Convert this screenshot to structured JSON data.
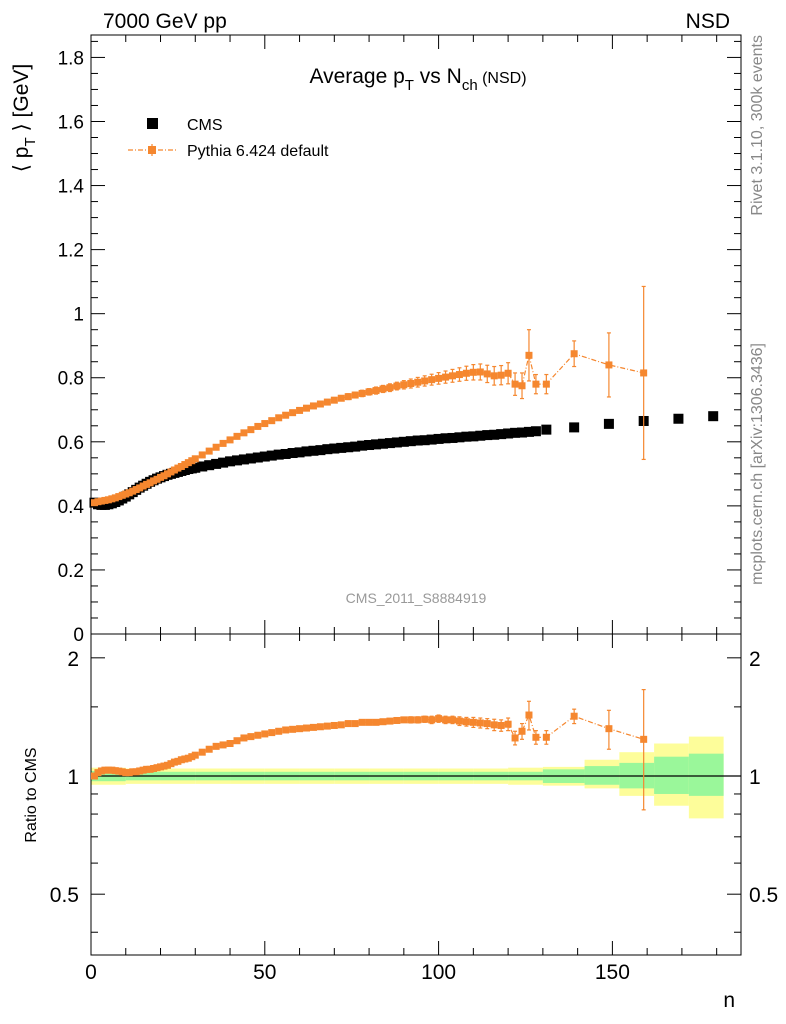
{
  "header": {
    "left": "7000 GeV pp",
    "right": "NSD",
    "side_top": "Rivet 3.1.10,  300k events",
    "side_bottom": "mcplots.cern.ch [arXiv:1306.3436]",
    "watermark": "CMS_2011_S8884919"
  },
  "title": {
    "main": "Average p",
    "sub1": "T",
    "mid": " vs N",
    "sub2": "ch",
    "suffix": " (NSD)"
  },
  "legend": {
    "data_label": "CMS",
    "mc_label": "Pythia 6.424 default"
  },
  "colors": {
    "data": "#000000",
    "mc": "#f5872f",
    "band_inner": "#9af79a",
    "band_outer": "#fdfd9a"
  },
  "chart_data": [
    {
      "type": "scatter",
      "panel": "main",
      "ylabel": "⟨ p_T ⟩ [GeV]",
      "xlim": [
        0,
        187
      ],
      "ylim": [
        0,
        1.87
      ],
      "yticks": [
        0,
        0.2,
        0.4,
        0.6,
        0.8,
        1,
        1.2,
        1.4,
        1.6,
        1.8
      ],
      "yticklabels": [
        "0",
        "0.2",
        "0.4",
        "0.6",
        "0.8",
        "1",
        "1.2",
        "1.4",
        "1.6",
        "1.8"
      ],
      "series": [
        {
          "name": "CMS",
          "x": [
            1,
            2,
            3,
            4,
            5,
            6,
            7,
            8,
            9,
            10,
            11,
            12,
            13,
            14,
            15,
            16,
            17,
            18,
            19,
            20,
            21,
            22,
            23,
            24,
            25,
            26,
            27,
            28,
            29,
            30,
            32,
            34,
            36,
            38,
            40,
            42,
            44,
            46,
            48,
            50,
            52,
            54,
            56,
            58,
            60,
            62,
            64,
            66,
            68,
            70,
            72,
            74,
            76,
            78,
            80,
            82,
            84,
            86,
            88,
            90,
            92,
            94,
            96,
            98,
            100,
            102,
            104,
            106,
            108,
            110,
            112,
            114,
            116,
            118,
            120,
            122,
            124,
            126,
            128,
            131,
            139,
            149,
            159,
            169,
            179
          ],
          "y": [
            0.41,
            0.405,
            0.403,
            0.403,
            0.405,
            0.408,
            0.412,
            0.417,
            0.423,
            0.429,
            0.436,
            0.443,
            0.45,
            0.457,
            0.463,
            0.469,
            0.475,
            0.48,
            0.485,
            0.489,
            0.493,
            0.497,
            0.5,
            0.503,
            0.506,
            0.509,
            0.512,
            0.515,
            0.517,
            0.519,
            0.523,
            0.527,
            0.531,
            0.535,
            0.539,
            0.542,
            0.545,
            0.548,
            0.551,
            0.554,
            0.557,
            0.56,
            0.562,
            0.565,
            0.567,
            0.57,
            0.572,
            0.574,
            0.577,
            0.579,
            0.581,
            0.583,
            0.585,
            0.588,
            0.59,
            0.592,
            0.594,
            0.596,
            0.598,
            0.6,
            0.602,
            0.604,
            0.605,
            0.607,
            0.609,
            0.611,
            0.612,
            0.614,
            0.616,
            0.617,
            0.619,
            0.621,
            0.622,
            0.624,
            0.626,
            0.628,
            0.629,
            0.631,
            0.633,
            0.638,
            0.645,
            0.656,
            0.665,
            0.672,
            0.68
          ]
        },
        {
          "name": "Pythia 6.424 default",
          "x": [
            1,
            2,
            3,
            4,
            5,
            6,
            7,
            8,
            9,
            10,
            11,
            12,
            13,
            14,
            15,
            16,
            17,
            18,
            19,
            20,
            21,
            22,
            23,
            24,
            25,
            26,
            27,
            28,
            29,
            30,
            32,
            34,
            36,
            38,
            40,
            42,
            44,
            46,
            48,
            50,
            52,
            54,
            56,
            58,
            60,
            62,
            64,
            66,
            68,
            70,
            72,
            74,
            76,
            78,
            80,
            82,
            84,
            86,
            88,
            90,
            92,
            94,
            96,
            98,
            100,
            102,
            104,
            106,
            108,
            110,
            112,
            114,
            116,
            118,
            120,
            122,
            124,
            126,
            128,
            131,
            139,
            149,
            159
          ],
          "y": [
            0.41,
            0.413,
            0.415,
            0.417,
            0.419,
            0.422,
            0.425,
            0.429,
            0.433,
            0.437,
            0.441,
            0.446,
            0.451,
            0.456,
            0.462,
            0.467,
            0.472,
            0.478,
            0.483,
            0.489,
            0.494,
            0.5,
            0.506,
            0.512,
            0.518,
            0.523,
            0.529,
            0.535,
            0.541,
            0.547,
            0.559,
            0.571,
            0.583,
            0.595,
            0.606,
            0.617,
            0.628,
            0.638,
            0.648,
            0.657,
            0.666,
            0.675,
            0.683,
            0.691,
            0.698,
            0.705,
            0.712,
            0.718,
            0.724,
            0.73,
            0.736,
            0.741,
            0.746,
            0.751,
            0.756,
            0.76,
            0.765,
            0.769,
            0.774,
            0.778,
            0.782,
            0.786,
            0.79,
            0.794,
            0.798,
            0.802,
            0.806,
            0.81,
            0.814,
            0.817,
            0.818,
            0.812,
            0.806,
            0.808,
            0.814,
            0.78,
            0.775,
            0.87,
            0.78,
            0.78,
            0.875,
            0.84,
            0.815
          ],
          "yerr": [
            0.003,
            0.003,
            0.003,
            0.003,
            0.003,
            0.003,
            0.003,
            0.003,
            0.003,
            0.003,
            0.003,
            0.003,
            0.003,
            0.003,
            0.003,
            0.003,
            0.003,
            0.003,
            0.003,
            0.003,
            0.003,
            0.003,
            0.003,
            0.003,
            0.003,
            0.003,
            0.003,
            0.003,
            0.003,
            0.003,
            0.004,
            0.004,
            0.004,
            0.004,
            0.004,
            0.004,
            0.004,
            0.005,
            0.005,
            0.005,
            0.005,
            0.006,
            0.006,
            0.006,
            0.006,
            0.007,
            0.007,
            0.007,
            0.008,
            0.008,
            0.008,
            0.009,
            0.009,
            0.01,
            0.01,
            0.011,
            0.011,
            0.012,
            0.012,
            0.013,
            0.014,
            0.015,
            0.016,
            0.017,
            0.018,
            0.019,
            0.02,
            0.021,
            0.022,
            0.024,
            0.025,
            0.027,
            0.029,
            0.03,
            0.033,
            0.035,
            0.04,
            0.08,
            0.03,
            0.03,
            0.04,
            0.1,
            0.27
          ]
        }
      ]
    },
    {
      "type": "scatter",
      "panel": "ratio",
      "xlabel": "n",
      "ylabel": "Ratio to CMS",
      "xlim": [
        0,
        187
      ],
      "ylim": [
        0.35,
        2.3
      ],
      "log_y": true,
      "xticks": [
        0,
        50,
        100,
        150
      ],
      "xticklabels": [
        "0",
        "50",
        "100",
        "150"
      ],
      "yticks": [
        0.5,
        1,
        2
      ],
      "yticklabels": [
        "0.5",
        "1",
        "2"
      ],
      "series": [
        {
          "name": "Pythia 6.424 default",
          "x": [
            1,
            2,
            3,
            4,
            5,
            6,
            7,
            8,
            9,
            10,
            11,
            12,
            13,
            14,
            15,
            16,
            17,
            18,
            19,
            20,
            21,
            22,
            23,
            24,
            25,
            26,
            27,
            28,
            29,
            30,
            32,
            34,
            36,
            38,
            40,
            42,
            44,
            46,
            48,
            50,
            52,
            54,
            56,
            58,
            60,
            62,
            64,
            66,
            68,
            70,
            72,
            74,
            76,
            78,
            80,
            82,
            84,
            86,
            88,
            90,
            92,
            94,
            96,
            98,
            100,
            102,
            104,
            106,
            108,
            110,
            112,
            114,
            116,
            118,
            120,
            122,
            124,
            126,
            128,
            131,
            139,
            149,
            159
          ],
          "y": [
            1.0,
            1.02,
            1.03,
            1.035,
            1.035,
            1.035,
            1.032,
            1.029,
            1.025,
            1.02,
            1.02,
            1.025,
            1.025,
            1.03,
            1.035,
            1.04,
            1.04,
            1.045,
            1.05,
            1.055,
            1.06,
            1.065,
            1.075,
            1.085,
            1.09,
            1.1,
            1.105,
            1.11,
            1.12,
            1.13,
            1.15,
            1.17,
            1.19,
            1.2,
            1.21,
            1.23,
            1.25,
            1.26,
            1.27,
            1.28,
            1.29,
            1.3,
            1.31,
            1.315,
            1.32,
            1.325,
            1.33,
            1.335,
            1.34,
            1.345,
            1.35,
            1.36,
            1.36,
            1.37,
            1.37,
            1.37,
            1.375,
            1.38,
            1.385,
            1.39,
            1.39,
            1.39,
            1.395,
            1.39,
            1.4,
            1.39,
            1.39,
            1.38,
            1.375,
            1.37,
            1.365,
            1.36,
            1.35,
            1.345,
            1.355,
            1.25,
            1.3,
            1.43,
            1.255,
            1.255,
            1.42,
            1.32,
            1.24
          ],
          "yerr": [
            0.01,
            0.01,
            0.01,
            0.01,
            0.01,
            0.01,
            0.01,
            0.01,
            0.01,
            0.01,
            0.01,
            0.01,
            0.01,
            0.01,
            0.01,
            0.01,
            0.01,
            0.01,
            0.01,
            0.01,
            0.01,
            0.01,
            0.01,
            0.01,
            0.01,
            0.01,
            0.01,
            0.01,
            0.01,
            0.01,
            0.01,
            0.01,
            0.01,
            0.01,
            0.01,
            0.01,
            0.01,
            0.01,
            0.01,
            0.01,
            0.01,
            0.01,
            0.01,
            0.01,
            0.01,
            0.015,
            0.015,
            0.015,
            0.015,
            0.015,
            0.015,
            0.015,
            0.015,
            0.015,
            0.015,
            0.02,
            0.02,
            0.02,
            0.02,
            0.02,
            0.025,
            0.025,
            0.025,
            0.03,
            0.03,
            0.03,
            0.03,
            0.035,
            0.035,
            0.04,
            0.04,
            0.04,
            0.045,
            0.045,
            0.05,
            0.05,
            0.06,
            0.12,
            0.05,
            0.05,
            0.06,
            0.15,
            0.42
          ]
        }
      ],
      "bands": {
        "edges": [
          0,
          10,
          20,
          30,
          40,
          50,
          60,
          70,
          80,
          90,
          100,
          110,
          120,
          130,
          142,
          152,
          162,
          172,
          182
        ],
        "inner": [
          [
            0.97,
            1.03
          ],
          [
            0.975,
            1.025
          ],
          [
            0.975,
            1.025
          ],
          [
            0.975,
            1.025
          ],
          [
            0.975,
            1.025
          ],
          [
            0.975,
            1.025
          ],
          [
            0.975,
            1.025
          ],
          [
            0.975,
            1.025
          ],
          [
            0.975,
            1.025
          ],
          [
            0.975,
            1.025
          ],
          [
            0.975,
            1.025
          ],
          [
            0.975,
            1.025
          ],
          [
            0.975,
            1.025
          ],
          [
            0.96,
            1.04
          ],
          [
            0.95,
            1.06
          ],
          [
            0.93,
            1.08
          ],
          [
            0.9,
            1.12
          ],
          [
            0.89,
            1.14
          ]
        ],
        "outer": [
          [
            0.95,
            1.05
          ],
          [
            0.955,
            1.045
          ],
          [
            0.955,
            1.045
          ],
          [
            0.955,
            1.045
          ],
          [
            0.955,
            1.045
          ],
          [
            0.955,
            1.045
          ],
          [
            0.955,
            1.045
          ],
          [
            0.955,
            1.045
          ],
          [
            0.955,
            1.045
          ],
          [
            0.955,
            1.045
          ],
          [
            0.955,
            1.045
          ],
          [
            0.955,
            1.045
          ],
          [
            0.95,
            1.05
          ],
          [
            0.945,
            1.055
          ],
          [
            0.93,
            1.1
          ],
          [
            0.89,
            1.15
          ],
          [
            0.84,
            1.21
          ],
          [
            0.78,
            1.26
          ]
        ]
      }
    }
  ]
}
